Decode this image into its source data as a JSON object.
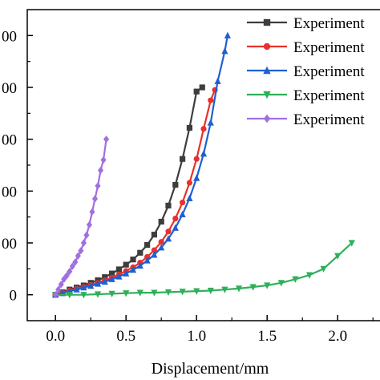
{
  "chart_data": {
    "type": "line",
    "title": "",
    "xlabel": "Displacement/mm",
    "ylabel": "",
    "xlim": [
      -0.2,
      2.3
    ],
    "ylim": [
      -50,
      550
    ],
    "xticks": [
      0.0,
      0.5,
      1.0,
      1.5,
      2.0
    ],
    "xtick_labels": [
      "0.0",
      "0.5",
      "1.0",
      "1.5",
      "2.0"
    ],
    "yticks": [
      0,
      100,
      200,
      300,
      400,
      500
    ],
    "ytick_labels": [
      "0",
      "00",
      "00",
      "00",
      "00",
      "00"
    ],
    "grid": false,
    "legend_position": "top-right",
    "series": [
      {
        "name": "Experiment",
        "color": "#3d3d3d",
        "marker": "square",
        "x": [
          0,
          0.05,
          0.1,
          0.15,
          0.2,
          0.25,
          0.3,
          0.35,
          0.4,
          0.45,
          0.5,
          0.55,
          0.6,
          0.65,
          0.7,
          0.75,
          0.8,
          0.85,
          0.9,
          0.95,
          1.0,
          1.04
        ],
        "y": [
          0,
          5,
          10,
          14,
          18,
          23,
          28,
          34,
          41,
          49,
          58,
          68,
          81,
          96,
          116,
          141,
          172,
          212,
          262,
          322,
          392,
          400
        ]
      },
      {
        "name": "Experiment",
        "color": "#e8312b",
        "marker": "circle",
        "x": [
          0,
          0.05,
          0.1,
          0.15,
          0.2,
          0.25,
          0.3,
          0.35,
          0.4,
          0.45,
          0.5,
          0.55,
          0.6,
          0.65,
          0.7,
          0.75,
          0.8,
          0.85,
          0.9,
          0.95,
          1.0,
          1.05,
          1.1,
          1.13
        ],
        "y": [
          0,
          4,
          8,
          12,
          15,
          19,
          23,
          28,
          33,
          39,
          46,
          53,
          62,
          73,
          86,
          102,
          122,
          147,
          178,
          216,
          262,
          320,
          375,
          395
        ]
      },
      {
        "name": "Experiment",
        "color": "#1f5fd1",
        "marker": "triangle-up",
        "x": [
          0,
          0.05,
          0.1,
          0.15,
          0.2,
          0.25,
          0.3,
          0.35,
          0.4,
          0.45,
          0.5,
          0.55,
          0.6,
          0.65,
          0.7,
          0.75,
          0.8,
          0.85,
          0.9,
          0.95,
          1.0,
          1.05,
          1.1,
          1.15,
          1.2,
          1.22
        ],
        "y": [
          0,
          3,
          7,
          10,
          14,
          17,
          21,
          25,
          30,
          35,
          41,
          48,
          56,
          66,
          77,
          91,
          108,
          129,
          155,
          186,
          225,
          272,
          332,
          412,
          470,
          500
        ]
      },
      {
        "name": "Experiment",
        "color": "#2eb05a",
        "marker": "triangle-down",
        "x": [
          0,
          0.1,
          0.2,
          0.3,
          0.4,
          0.5,
          0.6,
          0.7,
          0.8,
          0.9,
          1.0,
          1.1,
          1.2,
          1.3,
          1.4,
          1.5,
          1.6,
          1.7,
          1.8,
          1.9,
          2.0,
          2.1
        ],
        "y": [
          0,
          0,
          0,
          1,
          2,
          3,
          4,
          4,
          5,
          6,
          7,
          8,
          10,
          12,
          15,
          18,
          23,
          30,
          38,
          50,
          75,
          100
        ]
      },
      {
        "name": "Experiment",
        "color": "#a070e0",
        "marker": "diamond",
        "x": [
          0,
          0.02,
          0.04,
          0.06,
          0.08,
          0.1,
          0.12,
          0.14,
          0.16,
          0.18,
          0.2,
          0.22,
          0.24,
          0.26,
          0.28,
          0.3,
          0.32,
          0.34,
          0.36
        ],
        "y": [
          0,
          10,
          20,
          30,
          37,
          45,
          55,
          63,
          75,
          85,
          100,
          115,
          135,
          160,
          185,
          210,
          240,
          260,
          300
        ]
      }
    ]
  }
}
